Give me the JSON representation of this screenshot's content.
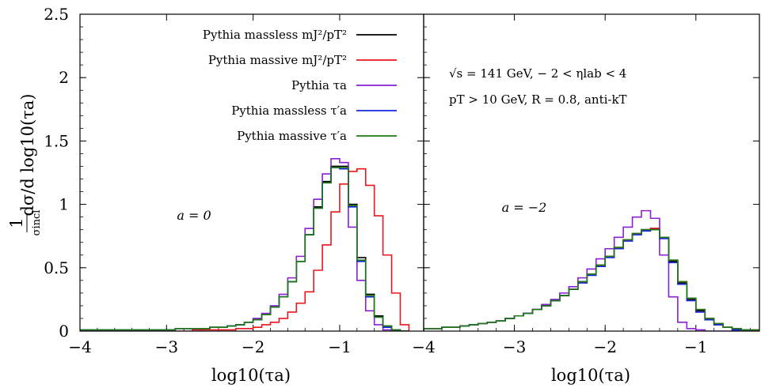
{
  "colors": {
    "Pythia massless m_J^2/p_T^2": "#000000",
    "Pythia massive m_J^2/p_T^2": "#e8171b",
    "Pythia tau_a": "#8a1fd4",
    "Pythia massless tau_a'": "#1424e0",
    "Pythia massive tau_a'": "#1f7a14"
  },
  "ylabel": {
    "numerator": "1",
    "denominator": "σincl",
    "rest": "dσ/d log10(τa)"
  },
  "xlabel": "log10(τa)",
  "legend": [
    {
      "key": "Pythia massless m_J^2/p_T^2",
      "text": "Pythia massless mJ²/pT²"
    },
    {
      "key": "Pythia massive m_J^2/p_T^2",
      "text": "Pythia massive mJ²/pT²"
    },
    {
      "key": "Pythia tau_a",
      "text": "Pythia τa"
    },
    {
      "key": "Pythia massless tau_a'",
      "text": "Pythia massless τ′a"
    },
    {
      "key": "Pythia massive tau_a'",
      "text": "Pythia massive τ′a"
    }
  ],
  "annotations": {
    "line1": "√s = 141 GeV,  − 2 < ηlab < 4",
    "line2": "pT > 10 GeV,  R = 0.8,  anti-kT"
  },
  "chart_data": [
    {
      "type": "line",
      "panel": "left",
      "annotation": "a = 0",
      "xlim": [
        -4,
        -0.03
      ],
      "ylim": [
        0,
        2.5
      ],
      "xticks": [
        -4,
        -3,
        -2,
        -1
      ],
      "xtick_labels": [
        "−4",
        "−3",
        "−2",
        "−1"
      ],
      "yticks": [
        0,
        0.5,
        1,
        1.5,
        2,
        2.5
      ],
      "ytick_labels": [
        "0",
        "0.5",
        "1",
        "1.5",
        "2",
        "2.5"
      ],
      "bin_edges": [
        -4.0,
        -3.9,
        -3.8,
        -3.7,
        -3.6,
        -3.5,
        -3.4,
        -3.3,
        -3.2,
        -3.1,
        -3.0,
        -2.9,
        -2.8,
        -2.7,
        -2.6,
        -2.5,
        -2.4,
        -2.3,
        -2.2,
        -2.1,
        -2.0,
        -1.9,
        -1.8,
        -1.7,
        -1.6,
        -1.5,
        -1.4,
        -1.3,
        -1.2,
        -1.1,
        -1.0,
        -0.9,
        -0.8,
        -0.7,
        -0.6,
        -0.5,
        -0.4,
        -0.3,
        -0.2
      ],
      "series": [
        {
          "name": "Pythia massless m_J^2/p_T^2",
          "values": [
            0.01,
            0.01,
            0.01,
            0.01,
            0.01,
            0.01,
            0.01,
            0.01,
            0.01,
            0.01,
            0.01,
            0.02,
            0.02,
            0.02,
            0.02,
            0.03,
            0.03,
            0.04,
            0.05,
            0.07,
            0.09,
            0.13,
            0.19,
            0.27,
            0.39,
            0.55,
            0.76,
            0.98,
            1.18,
            1.3,
            1.3,
            1.0,
            0.58,
            0.29,
            0.12,
            0.04,
            0.01,
            0.0
          ]
        },
        {
          "name": "Pythia massive m_J^2/p_T^2",
          "values": [
            0.0,
            0.0,
            0.0,
            0.0,
            0.0,
            0.0,
            0.0,
            0.0,
            0.0,
            0.0,
            0.0,
            0.0,
            0.0,
            0.01,
            0.01,
            0.01,
            0.01,
            0.01,
            0.02,
            0.02,
            0.03,
            0.05,
            0.07,
            0.1,
            0.15,
            0.22,
            0.31,
            0.48,
            0.68,
            0.94,
            1.16,
            1.26,
            1.28,
            1.15,
            0.91,
            0.6,
            0.3,
            0.05
          ]
        },
        {
          "name": "Pythia tau_a",
          "values": [
            0.01,
            0.01,
            0.01,
            0.01,
            0.01,
            0.01,
            0.01,
            0.01,
            0.01,
            0.01,
            0.01,
            0.02,
            0.02,
            0.02,
            0.02,
            0.03,
            0.03,
            0.04,
            0.05,
            0.07,
            0.1,
            0.14,
            0.2,
            0.29,
            0.42,
            0.59,
            0.81,
            1.04,
            1.24,
            1.36,
            1.33,
            0.82,
            0.4,
            0.16,
            0.05,
            0.01,
            0.0,
            0.0
          ]
        },
        {
          "name": "Pythia massless tau_a'",
          "values": [
            0.01,
            0.01,
            0.01,
            0.01,
            0.01,
            0.01,
            0.01,
            0.01,
            0.01,
            0.01,
            0.01,
            0.02,
            0.02,
            0.02,
            0.02,
            0.03,
            0.03,
            0.04,
            0.05,
            0.07,
            0.09,
            0.13,
            0.19,
            0.27,
            0.39,
            0.55,
            0.76,
            0.97,
            1.17,
            1.29,
            1.28,
            0.98,
            0.55,
            0.27,
            0.11,
            0.03,
            0.01,
            0.0
          ]
        },
        {
          "name": "Pythia massive tau_a'",
          "values": [
            0.01,
            0.01,
            0.01,
            0.01,
            0.01,
            0.01,
            0.01,
            0.01,
            0.01,
            0.01,
            0.01,
            0.02,
            0.02,
            0.02,
            0.02,
            0.03,
            0.03,
            0.04,
            0.05,
            0.07,
            0.09,
            0.13,
            0.19,
            0.27,
            0.39,
            0.55,
            0.76,
            0.97,
            1.17,
            1.29,
            1.29,
            0.99,
            0.56,
            0.28,
            0.11,
            0.04,
            0.01,
            0.0
          ]
        }
      ]
    },
    {
      "type": "line",
      "panel": "right",
      "annotation": "a = −2",
      "xlim": [
        -4,
        -0.3
      ],
      "ylim": [
        0,
        2.5
      ],
      "xticks": [
        -4,
        -3,
        -2,
        -1
      ],
      "xtick_labels": [
        "−4",
        "−3",
        "−2",
        "−1"
      ],
      "bin_edges": [
        -4.0,
        -3.9,
        -3.8,
        -3.7,
        -3.6,
        -3.5,
        -3.4,
        -3.3,
        -3.2,
        -3.1,
        -3.0,
        -2.9,
        -2.8,
        -2.7,
        -2.6,
        -2.5,
        -2.4,
        -2.3,
        -2.2,
        -2.1,
        -2.0,
        -1.9,
        -1.8,
        -1.7,
        -1.6,
        -1.5,
        -1.4,
        -1.3,
        -1.2,
        -1.1,
        -1.0,
        -0.9,
        -0.8,
        -0.7,
        -0.6,
        -0.5,
        -0.4,
        -0.3
      ],
      "series": [
        {
          "name": "Pythia massless m_J^2/p_T^2",
          "values": [
            0.02,
            0.02,
            0.03,
            0.03,
            0.04,
            0.05,
            0.06,
            0.07,
            0.08,
            0.1,
            0.12,
            0.14,
            0.17,
            0.2,
            0.24,
            0.28,
            0.33,
            0.39,
            0.45,
            0.52,
            0.59,
            0.66,
            0.72,
            0.77,
            0.8,
            0.81,
            0.74,
            0.55,
            0.38,
            0.25,
            0.16,
            0.09,
            0.05,
            0.03,
            0.01,
            0.01,
            0.0
          ]
        },
        {
          "name": "Pythia massive m_J^2/p_T^2",
          "values": [
            0.02,
            0.02,
            0.03,
            0.03,
            0.04,
            0.05,
            0.06,
            0.07,
            0.08,
            0.1,
            0.12,
            0.14,
            0.17,
            0.2,
            0.24,
            0.28,
            0.33,
            0.39,
            0.45,
            0.52,
            0.59,
            0.66,
            0.72,
            0.77,
            0.8,
            0.81,
            0.74,
            0.56,
            0.39,
            0.26,
            0.17,
            0.1,
            0.06,
            0.03,
            0.02,
            0.01,
            0.01
          ]
        },
        {
          "name": "Pythia tau_a",
          "values": [
            0.02,
            0.02,
            0.03,
            0.03,
            0.04,
            0.05,
            0.06,
            0.07,
            0.08,
            0.1,
            0.12,
            0.14,
            0.17,
            0.21,
            0.25,
            0.3,
            0.35,
            0.42,
            0.49,
            0.57,
            0.65,
            0.74,
            0.82,
            0.9,
            0.95,
            0.89,
            0.6,
            0.27,
            0.07,
            0.02,
            0.01,
            0.0,
            0.0,
            0.0,
            0.0,
            0.0,
            0.0
          ]
        },
        {
          "name": "Pythia massless tau_a'",
          "values": [
            0.02,
            0.02,
            0.03,
            0.03,
            0.04,
            0.05,
            0.06,
            0.07,
            0.08,
            0.1,
            0.12,
            0.14,
            0.17,
            0.2,
            0.24,
            0.28,
            0.33,
            0.38,
            0.44,
            0.51,
            0.58,
            0.65,
            0.71,
            0.76,
            0.79,
            0.8,
            0.73,
            0.54,
            0.37,
            0.24,
            0.15,
            0.09,
            0.05,
            0.03,
            0.01,
            0.01,
            0.0
          ]
        },
        {
          "name": "Pythia massive tau_a'",
          "values": [
            0.02,
            0.02,
            0.03,
            0.03,
            0.04,
            0.05,
            0.06,
            0.07,
            0.08,
            0.1,
            0.12,
            0.14,
            0.17,
            0.2,
            0.24,
            0.28,
            0.33,
            0.39,
            0.45,
            0.52,
            0.59,
            0.66,
            0.72,
            0.77,
            0.8,
            0.8,
            0.74,
            0.56,
            0.39,
            0.26,
            0.17,
            0.1,
            0.06,
            0.03,
            0.02,
            0.01,
            0.01
          ]
        }
      ]
    }
  ]
}
